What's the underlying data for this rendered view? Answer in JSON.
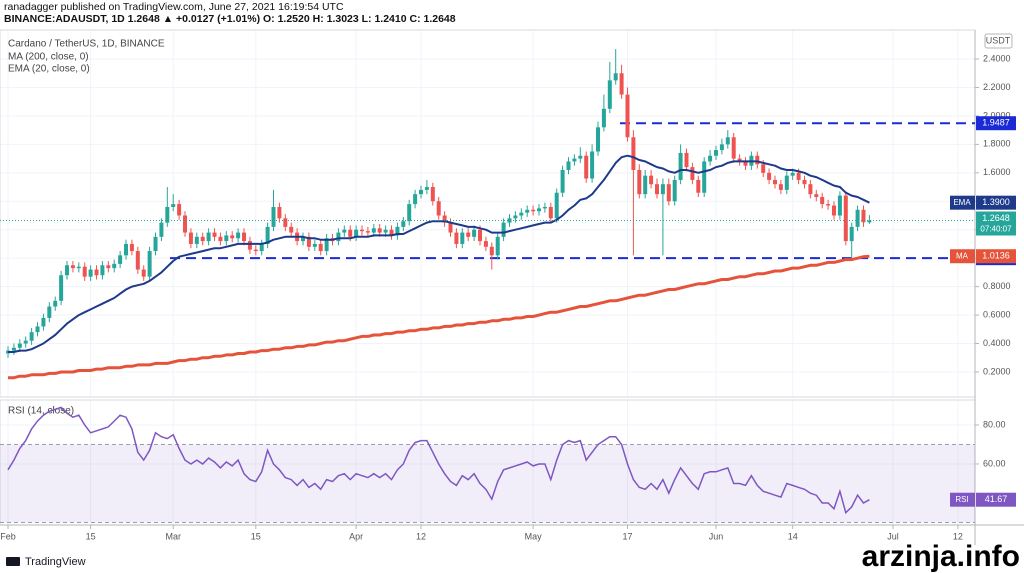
{
  "header": {
    "publisher": "ranadagger published on TradingView.com, June 27, 2021 16:19:54 UTC",
    "symbol_line": "BINANCE:ADAUSDT, 1D 1.2648 ▲ +0.0127 (+1.01%) O: 1.2520 H: 1.3023 L: 1.2410 C: 1.2648"
  },
  "chart_data": [
    {
      "type": "candlestick",
      "title": "Cardano / TetherUS, 1D, BINANCE",
      "currency": "USDT",
      "up_color": "#26a69a",
      "down_color": "#ef5350",
      "countdown": "07:40:07",
      "open": [
        0.33,
        0.35,
        0.37,
        0.4,
        0.42,
        0.48,
        0.52,
        0.58,
        0.66,
        0.7,
        0.88,
        0.95,
        0.93,
        0.94,
        0.87,
        0.92,
        0.88,
        0.95,
        0.93,
        0.96,
        1.02,
        1.1,
        1.05,
        0.92,
        0.87,
        1.05,
        1.15,
        1.25,
        1.36,
        1.38,
        1.3,
        1.18,
        1.1,
        1.15,
        1.12,
        1.18,
        1.15,
        1.12,
        1.16,
        1.14,
        1.18,
        1.12,
        1.06,
        1.05,
        1.1,
        1.22,
        1.36,
        1.28,
        1.22,
        1.18,
        1.12,
        1.15,
        1.08,
        1.1,
        1.05,
        1.14,
        1.12,
        1.18,
        1.2,
        1.15,
        1.2,
        1.19,
        1.18,
        1.21,
        1.18,
        1.2,
        1.16,
        1.22,
        1.26,
        1.38,
        1.45,
        1.48,
        1.5,
        1.4,
        1.3,
        1.25,
        1.18,
        1.1,
        1.18,
        1.15,
        1.2,
        1.12,
        1.08,
        1.02,
        1.15,
        1.25,
        1.28,
        1.3,
        1.32,
        1.34,
        1.33,
        1.35,
        1.36,
        1.28,
        1.46,
        1.62,
        1.68,
        1.7,
        1.72,
        1.56,
        1.75,
        1.92,
        2.05,
        2.25,
        2.3,
        2.15,
        1.85,
        1.62,
        1.45,
        1.58,
        1.52,
        1.45,
        1.52,
        1.4,
        1.55,
        1.74,
        1.64,
        1.55,
        1.46,
        1.68,
        1.72,
        1.76,
        1.8,
        1.85,
        1.7,
        1.68,
        1.65,
        1.72,
        1.66,
        1.6,
        1.55,
        1.52,
        1.48,
        1.58,
        1.6,
        1.55,
        1.52,
        1.45,
        1.43,
        1.38,
        1.37,
        1.3,
        1.44,
        1.12,
        1.22,
        1.34,
        1.252
      ],
      "high": [
        0.38,
        0.4,
        0.43,
        0.45,
        0.51,
        0.55,
        0.61,
        0.69,
        0.73,
        0.91,
        0.98,
        0.98,
        0.97,
        0.97,
        0.95,
        0.95,
        0.98,
        0.98,
        0.99,
        1.05,
        1.13,
        1.13,
        1.08,
        0.95,
        1.08,
        1.18,
        1.28,
        1.5,
        1.45,
        1.41,
        1.33,
        1.21,
        1.18,
        1.18,
        1.21,
        1.21,
        1.18,
        1.19,
        1.19,
        1.21,
        1.21,
        1.15,
        1.09,
        1.13,
        1.25,
        1.48,
        1.39,
        1.31,
        1.25,
        1.21,
        1.18,
        1.18,
        1.13,
        1.13,
        1.17,
        1.17,
        1.21,
        1.23,
        1.23,
        1.23,
        1.23,
        1.22,
        1.24,
        1.24,
        1.23,
        1.23,
        1.25,
        1.29,
        1.41,
        1.48,
        1.51,
        1.55,
        1.53,
        1.43,
        1.33,
        1.28,
        1.21,
        1.21,
        1.21,
        1.23,
        1.23,
        1.15,
        1.11,
        1.18,
        1.28,
        1.31,
        1.33,
        1.35,
        1.37,
        1.37,
        1.38,
        1.39,
        1.39,
        1.49,
        1.65,
        1.71,
        1.73,
        1.78,
        1.75,
        1.8,
        1.96,
        2.15,
        2.38,
        2.47,
        2.36,
        2.2,
        1.9,
        1.66,
        1.62,
        1.62,
        1.56,
        1.56,
        1.56,
        1.58,
        1.8,
        1.77,
        1.67,
        1.58,
        1.71,
        1.76,
        1.79,
        1.84,
        1.9,
        1.88,
        1.73,
        1.71,
        1.75,
        1.75,
        1.69,
        1.63,
        1.58,
        1.55,
        1.61,
        1.63,
        1.63,
        1.58,
        1.55,
        1.48,
        1.46,
        1.41,
        1.4,
        1.47,
        1.47,
        1.25,
        1.37,
        1.37,
        1.3023
      ],
      "low": [
        0.3,
        0.32,
        0.34,
        0.37,
        0.39,
        0.45,
        0.49,
        0.55,
        0.63,
        0.67,
        0.85,
        0.9,
        0.9,
        0.84,
        0.84,
        0.85,
        0.85,
        0.9,
        0.9,
        0.93,
        0.99,
        1.02,
        0.89,
        0.84,
        0.84,
        1.02,
        1.12,
        1.22,
        1.33,
        1.27,
        1.15,
        1.07,
        1.07,
        1.09,
        1.09,
        1.12,
        1.09,
        1.09,
        1.11,
        1.11,
        1.09,
        1.03,
        1.02,
        1.02,
        1.07,
        1.19,
        1.25,
        1.19,
        1.15,
        1.09,
        1.09,
        1.05,
        1.05,
        1.02,
        1.02,
        1.09,
        1.09,
        1.15,
        1.12,
        1.12,
        1.16,
        1.15,
        1.15,
        1.15,
        1.15,
        1.13,
        1.13,
        1.19,
        1.23,
        1.35,
        1.42,
        1.45,
        1.37,
        1.27,
        1.22,
        1.15,
        1.07,
        1.07,
        1.12,
        1.12,
        1.09,
        1.05,
        0.92,
        0.99,
        1.12,
        1.22,
        1.25,
        1.27,
        1.29,
        1.3,
        1.3,
        1.32,
        1.25,
        1.25,
        1.43,
        1.59,
        1.65,
        1.67,
        1.53,
        1.53,
        1.72,
        1.89,
        2.02,
        2.22,
        2.12,
        1.82,
        1.02,
        1.42,
        1.42,
        1.49,
        1.42,
        1.02,
        1.37,
        1.37,
        1.52,
        1.61,
        1.52,
        1.43,
        1.43,
        1.65,
        1.69,
        1.73,
        1.77,
        1.67,
        1.65,
        1.62,
        1.62,
        1.63,
        1.57,
        1.52,
        1.49,
        1.45,
        1.45,
        1.55,
        1.52,
        1.49,
        1.42,
        1.4,
        1.35,
        1.34,
        1.27,
        1.27,
        1.09,
        1.0,
        1.19,
        1.22,
        1.241
      ],
      "close": [
        0.35,
        0.37,
        0.4,
        0.42,
        0.48,
        0.52,
        0.58,
        0.66,
        0.7,
        0.88,
        0.95,
        0.93,
        0.94,
        0.87,
        0.92,
        0.88,
        0.95,
        0.93,
        0.96,
        1.02,
        1.1,
        1.05,
        0.92,
        0.87,
        1.05,
        1.15,
        1.25,
        1.36,
        1.38,
        1.3,
        1.18,
        1.1,
        1.15,
        1.12,
        1.18,
        1.15,
        1.12,
        1.16,
        1.14,
        1.18,
        1.12,
        1.06,
        1.05,
        1.1,
        1.22,
        1.36,
        1.28,
        1.22,
        1.18,
        1.12,
        1.15,
        1.08,
        1.1,
        1.05,
        1.14,
        1.12,
        1.18,
        1.2,
        1.15,
        1.2,
        1.19,
        1.18,
        1.21,
        1.18,
        1.2,
        1.16,
        1.22,
        1.26,
        1.38,
        1.45,
        1.48,
        1.5,
        1.4,
        1.3,
        1.25,
        1.18,
        1.1,
        1.18,
        1.15,
        1.2,
        1.12,
        1.08,
        1.02,
        1.15,
        1.25,
        1.28,
        1.3,
        1.32,
        1.34,
        1.33,
        1.35,
        1.36,
        1.28,
        1.46,
        1.62,
        1.68,
        1.7,
        1.72,
        1.56,
        1.75,
        1.92,
        2.05,
        2.25,
        2.3,
        2.15,
        1.85,
        1.62,
        1.45,
        1.58,
        1.52,
        1.45,
        1.52,
        1.4,
        1.55,
        1.74,
        1.64,
        1.55,
        1.46,
        1.68,
        1.72,
        1.76,
        1.8,
        1.85,
        1.7,
        1.68,
        1.65,
        1.72,
        1.66,
        1.6,
        1.55,
        1.52,
        1.48,
        1.58,
        1.6,
        1.55,
        1.52,
        1.45,
        1.43,
        1.38,
        1.37,
        1.3,
        1.44,
        1.12,
        1.22,
        1.34,
        1.252,
        1.2648
      ],
      "series": [
        {
          "name": "MA (200, close, 0)",
          "short": "MA",
          "color": "#e5533a",
          "values": [
            0.16,
            0.16,
            0.17,
            0.17,
            0.18,
            0.18,
            0.18,
            0.19,
            0.19,
            0.2,
            0.2,
            0.2,
            0.21,
            0.21,
            0.21,
            0.22,
            0.22,
            0.23,
            0.23,
            0.23,
            0.24,
            0.24,
            0.25,
            0.25,
            0.25,
            0.26,
            0.26,
            0.26,
            0.27,
            0.28,
            0.28,
            0.29,
            0.29,
            0.3,
            0.3,
            0.31,
            0.31,
            0.32,
            0.32,
            0.33,
            0.33,
            0.34,
            0.34,
            0.35,
            0.35,
            0.36,
            0.36,
            0.37,
            0.37,
            0.38,
            0.38,
            0.39,
            0.39,
            0.4,
            0.41,
            0.41,
            0.42,
            0.42,
            0.43,
            0.44,
            0.45,
            0.45,
            0.46,
            0.46,
            0.47,
            0.47,
            0.48,
            0.48,
            0.49,
            0.49,
            0.5,
            0.5,
            0.51,
            0.51,
            0.52,
            0.52,
            0.53,
            0.53,
            0.54,
            0.54,
            0.55,
            0.55,
            0.56,
            0.56,
            0.57,
            0.57,
            0.58,
            0.58,
            0.59,
            0.59,
            0.6,
            0.61,
            0.62,
            0.62,
            0.63,
            0.64,
            0.65,
            0.66,
            0.66,
            0.67,
            0.68,
            0.69,
            0.7,
            0.7,
            0.71,
            0.72,
            0.73,
            0.74,
            0.74,
            0.75,
            0.76,
            0.77,
            0.78,
            0.78,
            0.79,
            0.8,
            0.81,
            0.82,
            0.82,
            0.83,
            0.84,
            0.85,
            0.85,
            0.86,
            0.87,
            0.87,
            0.88,
            0.89,
            0.89,
            0.9,
            0.91,
            0.91,
            0.92,
            0.93,
            0.93,
            0.94,
            0.95,
            0.95,
            0.96,
            0.97,
            0.97,
            0.98,
            0.99,
            0.99,
            1.0,
            1.01,
            1.0136
          ]
        },
        {
          "name": "EMA (20, close, 0)",
          "short": "EMA",
          "color": "#1e3a8a",
          "last_label": "1.3900",
          "values": [
            0.34,
            0.34,
            0.35,
            0.35,
            0.36,
            0.38,
            0.4,
            0.43,
            0.46,
            0.5,
            0.54,
            0.57,
            0.6,
            0.62,
            0.64,
            0.66,
            0.68,
            0.7,
            0.72,
            0.75,
            0.78,
            0.8,
            0.81,
            0.82,
            0.84,
            0.87,
            0.9,
            0.94,
            0.98,
            1.01,
            1.02,
            1.03,
            1.04,
            1.05,
            1.06,
            1.07,
            1.07,
            1.08,
            1.09,
            1.1,
            1.1,
            1.1,
            1.1,
            1.1,
            1.11,
            1.13,
            1.14,
            1.15,
            1.15,
            1.15,
            1.15,
            1.14,
            1.14,
            1.13,
            1.13,
            1.13,
            1.14,
            1.14,
            1.14,
            1.15,
            1.15,
            1.15,
            1.16,
            1.16,
            1.16,
            1.16,
            1.17,
            1.17,
            1.19,
            1.21,
            1.23,
            1.25,
            1.26,
            1.26,
            1.26,
            1.25,
            1.24,
            1.23,
            1.22,
            1.22,
            1.21,
            1.2,
            1.18,
            1.18,
            1.18,
            1.19,
            1.2,
            1.21,
            1.22,
            1.23,
            1.24,
            1.25,
            1.25,
            1.27,
            1.3,
            1.34,
            1.37,
            1.41,
            1.42,
            1.45,
            1.5,
            1.55,
            1.61,
            1.67,
            1.71,
            1.72,
            1.71,
            1.69,
            1.68,
            1.66,
            1.64,
            1.63,
            1.61,
            1.6,
            1.62,
            1.62,
            1.61,
            1.6,
            1.61,
            1.62,
            1.64,
            1.65,
            1.67,
            1.68,
            1.68,
            1.68,
            1.68,
            1.68,
            1.67,
            1.66,
            1.65,
            1.63,
            1.62,
            1.62,
            1.61,
            1.6,
            1.58,
            1.57,
            1.55,
            1.53,
            1.51,
            1.5,
            1.46,
            1.44,
            1.43,
            1.41,
            1.39
          ]
        }
      ],
      "levels": [
        {
          "value": 1.9487,
          "color": "#1a2bd6"
        },
        {
          "value": {
            "value": 1,
            "label": "1.0000"
          },
          "color": "#1a2bd6"
        }
      ],
      "ylim": [
        0.024,
        2.604
      ],
      "yticks": [
        {
          "value": 0.2,
          "label": "0.2000"
        },
        {
          "value": 0.4,
          "label": "0.4000"
        },
        {
          "value": 0.6,
          "label": "0.6000"
        },
        {
          "value": 0.8,
          "label": "0.8000"
        },
        {
          "value": 1.0,
          "label": "1.0000"
        },
        {
          "value": 1.2,
          "label": "1.2000"
        },
        {
          "value": 1.4,
          "label": "1.4000"
        },
        {
          "value": 1.6,
          "label": "1.6000"
        },
        {
          "value": 1.8,
          "label": "1.8000"
        },
        {
          "value": 2.0,
          "label": "2.0000"
        },
        {
          "value": 2.2,
          "label": "2.2000"
        },
        {
          "value": 2.4,
          "label": "2.4000"
        }
      ],
      "xlim": [
        -1.36,
        163.9
      ],
      "xticks": [
        {
          "value": 0,
          "label": "Feb"
        },
        {
          "value": 14,
          "label": "15"
        },
        {
          "value": 28,
          "label": "Mar"
        },
        {
          "value": 42,
          "label": "15"
        },
        {
          "value": 59,
          "label": "Apr"
        },
        {
          "value": 70,
          "label": "12"
        },
        {
          "value": 89,
          "label": "May"
        },
        {
          "value": 105,
          "label": "17"
        },
        {
          "value": 120,
          "label": "Jun"
        },
        {
          "value": 133,
          "label": "14"
        },
        {
          "value": 150,
          "label": "Jul"
        },
        {
          "value": 161,
          "label": "12"
        }
      ],
      "grid": true
    },
    {
      "type": "line",
      "title": "RSI (14, close)",
      "series": [
        {
          "name": "RSI",
          "color": "#7e57c2",
          "values": [
            57,
            62,
            68,
            72,
            78,
            82,
            85,
            87,
            88,
            89,
            86,
            84,
            85,
            80,
            76,
            77,
            78,
            79,
            82,
            85,
            84,
            78,
            66,
            62,
            67,
            76,
            74,
            73,
            75,
            68,
            62,
            60,
            62,
            60,
            63,
            61,
            58,
            61,
            59,
            62,
            55,
            52,
            51,
            56,
            67,
            60,
            57,
            53,
            52,
            49,
            52,
            48,
            50,
            47,
            52,
            51,
            54,
            55,
            52,
            55,
            54,
            53,
            55,
            53,
            55,
            52,
            57,
            60,
            67,
            71,
            72,
            72,
            66,
            60,
            55,
            51,
            49,
            54,
            52,
            55,
            50,
            47,
            42,
            51,
            57,
            58,
            59,
            60,
            61,
            59,
            60,
            60,
            52,
            62,
            70,
            72,
            71,
            72,
            62,
            66,
            70,
            72,
            74,
            74,
            70,
            60,
            52,
            48,
            47,
            50,
            47,
            52,
            45,
            52,
            58,
            54,
            50,
            47,
            55,
            56,
            56,
            57,
            58,
            50,
            50,
            49,
            54,
            49,
            46,
            45,
            44,
            43,
            50,
            49,
            48,
            47,
            45,
            44,
            40,
            40,
            37,
            46,
            35,
            38,
            44,
            40,
            41.67
          ]
        }
      ],
      "band": [
        30,
        70
      ],
      "ylim": [
        28.7,
        92.8
      ],
      "yticks": [
        {
          "value": 60,
          "label": "60.00"
        },
        {
          "value": 80,
          "label": "80.00"
        }
      ]
    }
  ],
  "footer": {
    "brand": "TradingView",
    "watermark": "arzinja.info"
  }
}
